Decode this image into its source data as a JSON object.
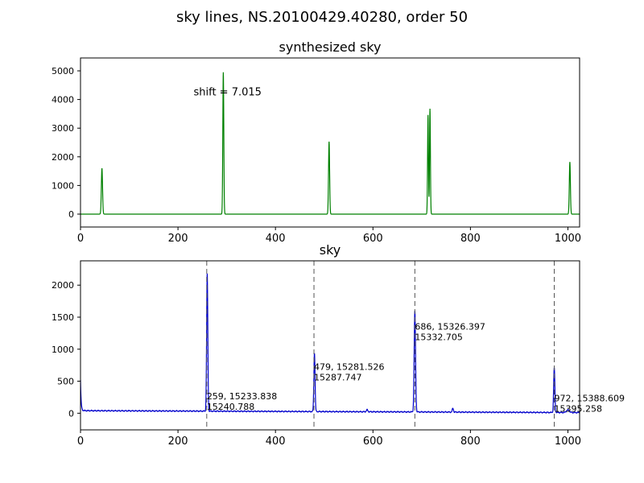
{
  "figure": {
    "suptitle": "sky lines, NS.20100429.40280, order 50"
  },
  "chart_data": [
    {
      "type": "line",
      "title": "synthesized sky",
      "xlabel": "",
      "ylabel": "",
      "xlim": [
        0,
        1024
      ],
      "ylim": [
        -450,
        5450
      ],
      "xticks": [
        0,
        200,
        400,
        600,
        800,
        1000
      ],
      "yticks": [
        0,
        1000,
        2000,
        3000,
        4000,
        5000
      ],
      "grid": false,
      "line_color": "#008000",
      "baseline": 0,
      "peaks": [
        {
          "x": 44,
          "height": 1600,
          "width": 1.2
        },
        {
          "x": 293,
          "height": 4950,
          "width": 1.0
        },
        {
          "x": 510,
          "height": 2530,
          "width": 1.1
        },
        {
          "x": 713,
          "height": 3460,
          "width": 0.9
        },
        {
          "x": 717,
          "height": 3680,
          "width": 0.9
        },
        {
          "x": 1004,
          "height": 1820,
          "width": 1.1
        }
      ],
      "annotations": [
        {
          "text": "shift = 7.015",
          "x": 232,
          "y": 4150
        }
      ]
    },
    {
      "type": "line",
      "title": "sky",
      "xlabel": "",
      "ylabel": "",
      "xlim": [
        0,
        1024
      ],
      "ylim": [
        -260,
        2380
      ],
      "xticks": [
        0,
        200,
        400,
        600,
        800,
        1000
      ],
      "yticks": [
        0,
        500,
        1000,
        1500,
        2000
      ],
      "grid": false,
      "line_color": "#0000cc",
      "baseline_start": 40,
      "baseline_end": 10,
      "edge_spike": 480,
      "peaks": [
        {
          "x": 260,
          "height": 2140,
          "width": 1.2
        },
        {
          "x": 480,
          "height": 920,
          "width": 1.2
        },
        {
          "x": 588,
          "height": 30,
          "width": 1.5
        },
        {
          "x": 686,
          "height": 1570,
          "width": 1.4
        },
        {
          "x": 764,
          "height": 60,
          "width": 1.2
        },
        {
          "x": 972,
          "height": 700,
          "width": 1.2
        },
        {
          "x": 1000,
          "height": 40,
          "width": 3.0
        }
      ],
      "vlines": [
        259,
        479,
        686,
        972
      ],
      "vline_color": "#555555",
      "line_labels": [
        {
          "x": 259,
          "line1": "259, 15233.838",
          "line2": "15240.788"
        },
        {
          "x": 479,
          "line1": "479, 15281.526",
          "line2": "15287.747"
        },
        {
          "x": 686,
          "line1": "686, 15326.397",
          "line2": "15332.705"
        },
        {
          "x": 972,
          "line1": "972, 15388.609",
          "line2": "15395.258"
        }
      ]
    }
  ]
}
